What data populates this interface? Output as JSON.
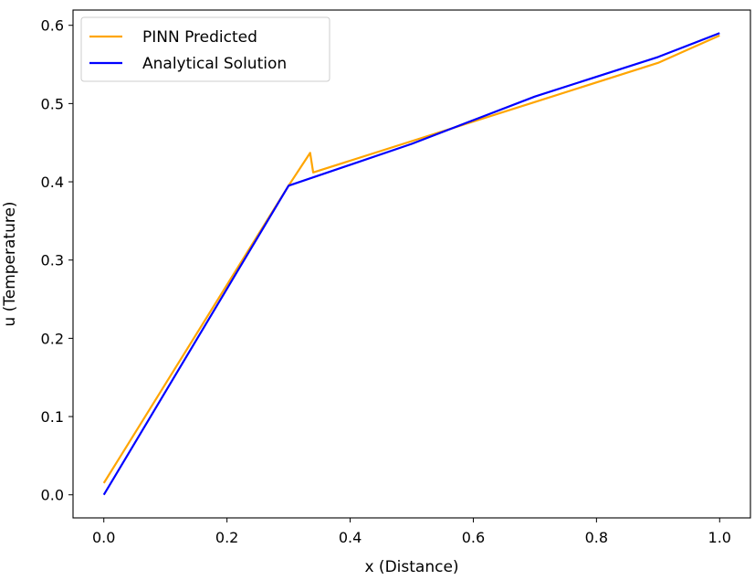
{
  "chart_data": {
    "type": "line",
    "title": "",
    "xlabel": "x (Distance)",
    "ylabel": "u (Temperature)",
    "xlim": [
      -0.05,
      1.05
    ],
    "ylim": [
      -0.0295,
      0.6195
    ],
    "xticks": [
      0.0,
      0.2,
      0.4,
      0.6,
      0.8,
      1.0
    ],
    "xtick_labels": [
      "0.0",
      "0.2",
      "0.4",
      "0.6",
      "0.8",
      "1.0"
    ],
    "yticks": [
      0.0,
      0.1,
      0.2,
      0.3,
      0.4,
      0.5,
      0.6
    ],
    "ytick_labels": [
      "0.0",
      "0.1",
      "0.2",
      "0.3",
      "0.4",
      "0.5",
      "0.6"
    ],
    "grid": false,
    "legend_position": "upper-left",
    "series": [
      {
        "name": "PINN Predicted",
        "color": "#FFA500",
        "x": [
          0.0,
          0.3,
          0.335,
          0.34,
          0.5,
          0.7,
          0.9,
          1.0
        ],
        "y": [
          0.015,
          0.395,
          0.437,
          0.412,
          0.452,
          0.502,
          0.552,
          0.587
        ]
      },
      {
        "name": "Analytical Solution",
        "color": "#0000FF",
        "x": [
          0.0,
          0.3,
          0.5,
          0.7,
          0.9,
          1.0
        ],
        "y": [
          0.0,
          0.395,
          0.4485,
          0.509,
          0.5595,
          0.59
        ]
      }
    ]
  }
}
